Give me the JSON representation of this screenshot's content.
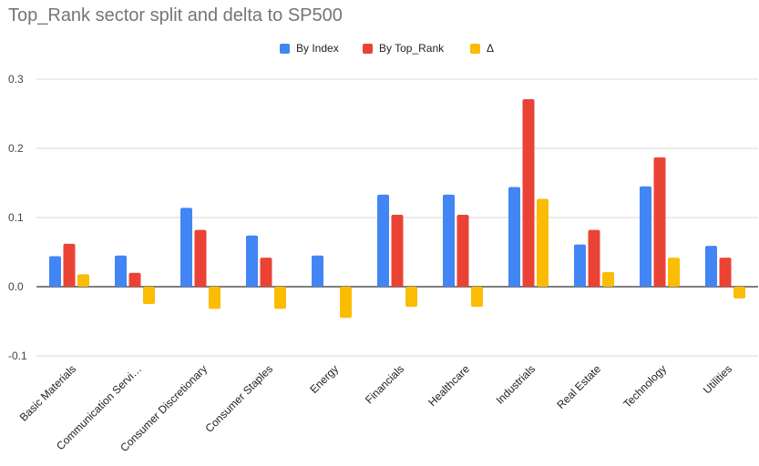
{
  "chart_data": {
    "type": "bar",
    "title": "Top_Rank sector split and delta to SP500",
    "xlabel": "",
    "ylabel": "",
    "ylim": [
      -0.1,
      0.3
    ],
    "yticks": [
      "0.3",
      "0.2",
      "0.1",
      "0.0",
      "-0.1"
    ],
    "ytick_values": [
      0.3,
      0.2,
      0.1,
      0.0,
      -0.1
    ],
    "grid": true,
    "legend_position": "top-center",
    "categories": [
      "Basic Materials",
      "Communication Servi…",
      "Consumer Discretionary",
      "Consumer Staples",
      "Energy",
      "Financials",
      "Healthcare",
      "Industrials",
      "Real Estate",
      "Technology",
      "Utilities"
    ],
    "series": [
      {
        "name": "By Index",
        "color": "#4285f4",
        "values": [
          0.044,
          0.045,
          0.114,
          0.074,
          0.045,
          0.133,
          0.133,
          0.144,
          0.061,
          0.145,
          0.059
        ]
      },
      {
        "name": "By Top_Rank",
        "color": "#ea4335",
        "values": [
          0.062,
          0.02,
          0.082,
          0.042,
          0.0,
          0.104,
          0.104,
          0.271,
          0.082,
          0.187,
          0.042
        ]
      },
      {
        "name": "Δ",
        "color": "#fbbc04",
        "values": [
          0.018,
          -0.025,
          -0.032,
          -0.032,
          -0.045,
          -0.029,
          -0.029,
          0.127,
          0.021,
          0.042,
          -0.017
        ]
      }
    ]
  }
}
